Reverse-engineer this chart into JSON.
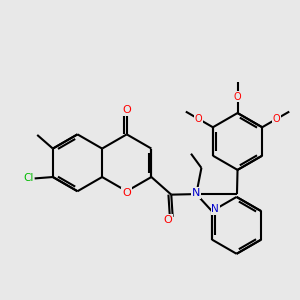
{
  "background_color": "#e8e8e8",
  "bond_color": "#000000",
  "bond_width": 1.5,
  "atom_colors": {
    "O": "#ff0000",
    "N": "#0000cc",
    "Cl": "#00bb00",
    "C": "#000000"
  },
  "font_size": 7.0
}
